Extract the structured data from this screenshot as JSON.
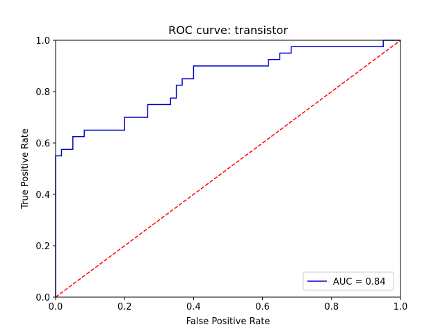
{
  "chart_data": {
    "type": "line",
    "title": "ROC curve: transistor",
    "xlabel": "False Positive Rate",
    "ylabel": "True Positive Rate",
    "xlim": [
      0.0,
      1.0
    ],
    "ylim": [
      0.0,
      1.0
    ],
    "xticks": [
      "0.0",
      "0.2",
      "0.4",
      "0.6",
      "0.8",
      "1.0"
    ],
    "yticks": [
      "0.0",
      "0.2",
      "0.4",
      "0.6",
      "0.8",
      "1.0"
    ],
    "grid": false,
    "legend_position": "lower-right",
    "series": [
      {
        "name": "AUC = 0.84",
        "color": "#0000cc",
        "style": "solid",
        "step": true,
        "points": [
          [
            0.0,
            0.0
          ],
          [
            0.0,
            0.55
          ],
          [
            0.017,
            0.55
          ],
          [
            0.017,
            0.575
          ],
          [
            0.05,
            0.575
          ],
          [
            0.05,
            0.625
          ],
          [
            0.083,
            0.625
          ],
          [
            0.083,
            0.65
          ],
          [
            0.2,
            0.65
          ],
          [
            0.2,
            0.7
          ],
          [
            0.267,
            0.7
          ],
          [
            0.267,
            0.75
          ],
          [
            0.333,
            0.75
          ],
          [
            0.333,
            0.775
          ],
          [
            0.35,
            0.775
          ],
          [
            0.35,
            0.825
          ],
          [
            0.367,
            0.825
          ],
          [
            0.367,
            0.85
          ],
          [
            0.4,
            0.85
          ],
          [
            0.4,
            0.9
          ],
          [
            0.617,
            0.9
          ],
          [
            0.617,
            0.925
          ],
          [
            0.65,
            0.925
          ],
          [
            0.65,
            0.95
          ],
          [
            0.683,
            0.95
          ],
          [
            0.683,
            0.975
          ],
          [
            0.95,
            0.975
          ],
          [
            0.95,
            1.0
          ],
          [
            1.0,
            1.0
          ]
        ]
      },
      {
        "name": "",
        "color": "#ff0000",
        "style": "dashed",
        "step": false,
        "points": [
          [
            0.0,
            0.0
          ],
          [
            1.0,
            1.0
          ]
        ]
      }
    ]
  }
}
